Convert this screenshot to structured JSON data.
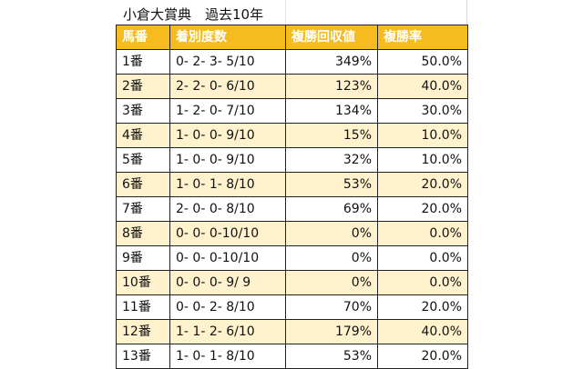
{
  "title": "小倉大賞典　過去10年",
  "headers": [
    "馬番",
    "着別度数",
    "複勝回収値",
    "複勝率"
  ],
  "rows": [
    {
      "num": "1番",
      "record": "0- 2- 3- 5/10",
      "recovery": "349%",
      "rate": "50.0%"
    },
    {
      "num": "2番",
      "record": "2- 2- 0- 6/10",
      "recovery": "123%",
      "rate": "40.0%"
    },
    {
      "num": "3番",
      "record": "1- 2- 0- 7/10",
      "recovery": "134%",
      "rate": "30.0%"
    },
    {
      "num": "4番",
      "record": "1- 0- 0- 9/10",
      "recovery": "15%",
      "rate": "10.0%"
    },
    {
      "num": "5番",
      "record": "1- 0- 0- 9/10",
      "recovery": "32%",
      "rate": "10.0%"
    },
    {
      "num": "6番",
      "record": "1- 0- 1- 8/10",
      "recovery": "53%",
      "rate": "20.0%"
    },
    {
      "num": "7番",
      "record": "2- 0- 0- 8/10",
      "recovery": "69%",
      "rate": "20.0%"
    },
    {
      "num": "8番",
      "record": "0- 0- 0-10/10",
      "recovery": "0%",
      "rate": "0.0%"
    },
    {
      "num": "9番",
      "record": "0- 0- 0-10/10",
      "recovery": "0%",
      "rate": "0.0%"
    },
    {
      "num": "10番",
      "record": "0- 0- 0- 9/ 9",
      "recovery": "0%",
      "rate": "0.0%"
    },
    {
      "num": "11番",
      "record": "0- 0- 2- 8/10",
      "recovery": "70%",
      "rate": "20.0%"
    },
    {
      "num": "12番",
      "record": "1- 1- 2- 6/10",
      "recovery": "179%",
      "rate": "40.0%"
    },
    {
      "num": "13番",
      "record": "1- 0- 1- 8/10",
      "recovery": "53%",
      "rate": "20.0%"
    }
  ],
  "colors": {
    "header_bg": "#f6bc1f",
    "stripe_bg": "#fff2cc",
    "header_text": "#ffffff"
  }
}
